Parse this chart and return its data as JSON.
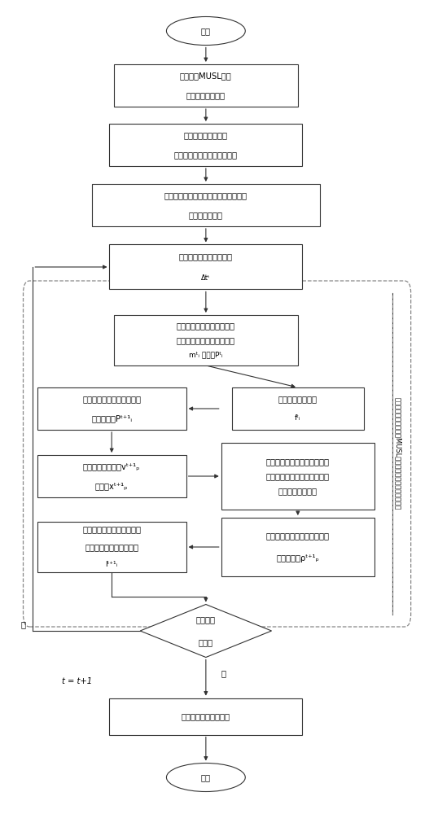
{
  "fig_width": 5.38,
  "fig_height": 10.0,
  "bg_color": "#ffffff",
  "box_color": "#ffffff",
  "box_edge": "#333333",
  "text_color": "#000000",
  "arrow_color": "#333333",
  "start_text": "开始",
  "end_text": "结束",
  "box1_text_l1": "改进传统MUSL格式",
  "box1_text_l2": "中的动量修正步骤",
  "box2_text_l1": "建立冲击波流场模型",
  "box2_text_l2": "对冲击波流场进行离散化处理",
  "box3_text_l1": "给定冲击波流场的初始条件与边界条件",
  "box3_text_l2": "设置计算总时长",
  "box4_text_l1": "计算当前步的时间步长：",
  "box4_text_l2": "Δtᵗ",
  "box5_text_l1": "将物质点参数映射到网格节",
  "box5_text_l2": "点上，得到网格节点的质量",
  "box5_text_l3": "mᵗᵢ 和动量Pᵗᵢ",
  "box6r_text_l1": "计算网格节点力：",
  "box6r_text_l2": "fᵗᵢ",
  "box6l_text_l1": "积分动量方程，得到新的网",
  "box6l_text_l2": "格节点动量Pᵗ⁺¹ᵢ",
  "box7l_text_l1": "更新物质点的速度vᵗ⁺¹ₚ",
  "box7l_text_l2": "和位置xᵗ⁺¹ₚ",
  "box7r_text_l1": "将更新过的物质点参数映射到",
  "box7r_text_l2": "网格节点上，得到修正后的网",
  "box7r_text_l3": "格节点质量和动量",
  "box8r_text_l1": "利用应变增量求出下一时刻物",
  "box8r_text_l2": "质点的密度ρᵗ⁺¹ₚ",
  "box8l_text_l1": "利用理想气体状态方程求解",
  "box8l_text_l2": "下一时刻物质点的压力：",
  "box8l_text_l3": "lᵗ⁺¹ᵢ",
  "diamond_text_l1": "计算至终",
  "diamond_text_l2": "止时刻",
  "final_box_text": "对流场进行可视化处理",
  "side_label": "基于冲击波求解的改进MUSL格式物质点法求解冲击波流场",
  "no_label": "否",
  "yes_label": "是",
  "t_label": "t = t+1"
}
